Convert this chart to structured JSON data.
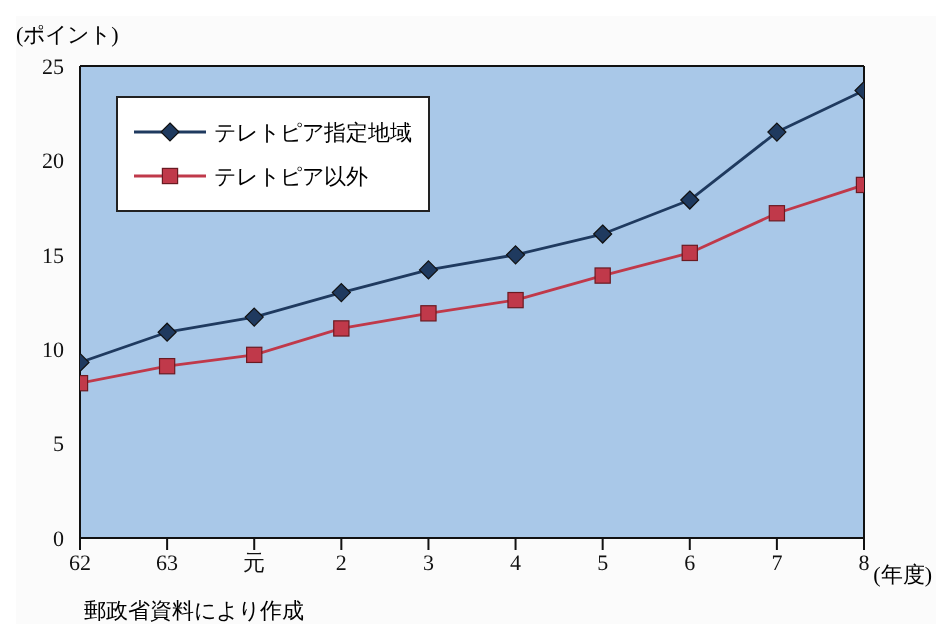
{
  "chart_data": {
    "type": "line",
    "ylabel": "(ポイント)",
    "xlabel": "(年度)",
    "categories": [
      "62",
      "63",
      "元",
      "2",
      "3",
      "4",
      "5",
      "6",
      "7",
      "8"
    ],
    "ylim": [
      0,
      25
    ],
    "yticks": [
      0,
      5,
      10,
      15,
      20,
      25
    ],
    "grid": false,
    "legend": "top left",
    "series": [
      {
        "name": "テレトピア指定地域",
        "color": "#1f3a5f",
        "marker": "diamond",
        "values": [
          9.3,
          10.9,
          11.7,
          13.0,
          14.2,
          15.0,
          16.1,
          17.9,
          21.5,
          23.7
        ]
      },
      {
        "name": "テレトピア以外",
        "color": "#c0394a",
        "marker": "square",
        "values": [
          8.2,
          9.1,
          9.7,
          11.1,
          11.9,
          12.6,
          13.9,
          15.1,
          17.2,
          18.7
        ]
      }
    ],
    "annotations": [
      "郵政省資料により作成"
    ]
  }
}
